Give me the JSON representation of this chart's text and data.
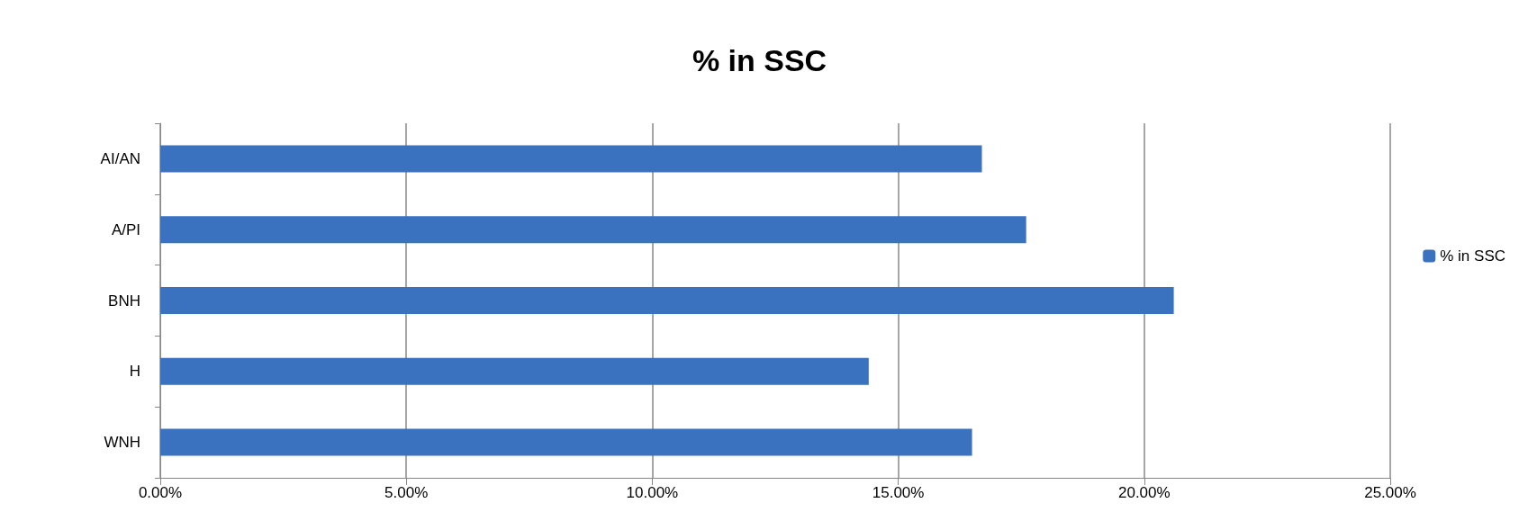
{
  "chart_data": {
    "type": "bar",
    "orientation": "horizontal",
    "title": "% in SSC",
    "categories": [
      "AI/AN",
      "A/PI",
      "BNH",
      "H",
      "WNH"
    ],
    "series": [
      {
        "name": "% in SSC",
        "color": "#3a72c0",
        "values": [
          16.7,
          17.6,
          20.6,
          14.4,
          16.5
        ]
      }
    ],
    "xlim": [
      0,
      25
    ],
    "xticks": [
      {
        "value": 0,
        "label": "0.00%"
      },
      {
        "value": 5,
        "label": "5.00%"
      },
      {
        "value": 10,
        "label": "10.00%"
      },
      {
        "value": 15,
        "label": "15.00%"
      },
      {
        "value": 20,
        "label": "20.00%"
      },
      {
        "value": 25,
        "label": "25.00%"
      }
    ],
    "grid": "x",
    "legend": "right"
  }
}
